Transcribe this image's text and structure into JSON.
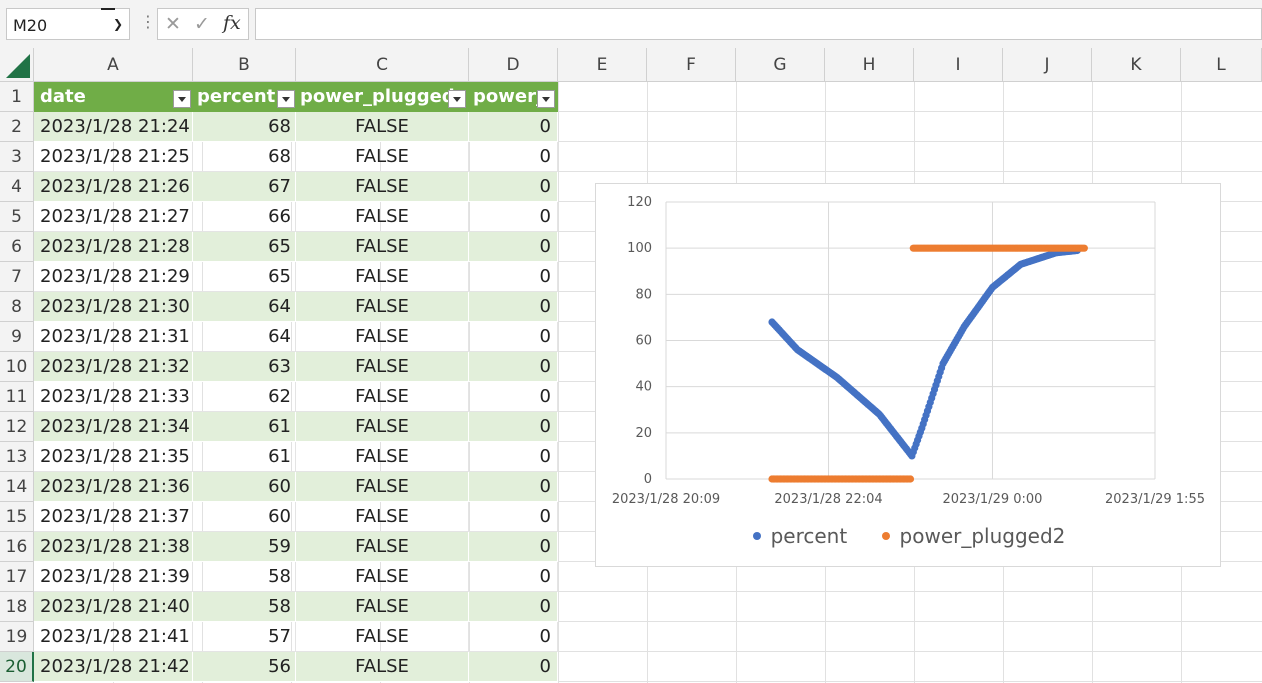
{
  "formula_bar": {
    "name_box": "M20",
    "formula": ""
  },
  "columns": [
    "A",
    "B",
    "C",
    "D",
    "E",
    "F",
    "G",
    "H",
    "I",
    "J",
    "K",
    "L"
  ],
  "active_row": 20,
  "table": {
    "headers": [
      "date",
      "percent",
      "power_plugged",
      "power_"
    ],
    "rows": [
      [
        "2023/1/28 21:24",
        "68",
        "FALSE",
        "0"
      ],
      [
        "2023/1/28 21:25",
        "68",
        "FALSE",
        "0"
      ],
      [
        "2023/1/28 21:26",
        "67",
        "FALSE",
        "0"
      ],
      [
        "2023/1/28 21:27",
        "66",
        "FALSE",
        "0"
      ],
      [
        "2023/1/28 21:28",
        "65",
        "FALSE",
        "0"
      ],
      [
        "2023/1/28 21:29",
        "65",
        "FALSE",
        "0"
      ],
      [
        "2023/1/28 21:30",
        "64",
        "FALSE",
        "0"
      ],
      [
        "2023/1/28 21:31",
        "64",
        "FALSE",
        "0"
      ],
      [
        "2023/1/28 21:32",
        "63",
        "FALSE",
        "0"
      ],
      [
        "2023/1/28 21:33",
        "62",
        "FALSE",
        "0"
      ],
      [
        "2023/1/28 21:34",
        "61",
        "FALSE",
        "0"
      ],
      [
        "2023/1/28 21:35",
        "61",
        "FALSE",
        "0"
      ],
      [
        "2023/1/28 21:36",
        "60",
        "FALSE",
        "0"
      ],
      [
        "2023/1/28 21:37",
        "60",
        "FALSE",
        "0"
      ],
      [
        "2023/1/28 21:38",
        "59",
        "FALSE",
        "0"
      ],
      [
        "2023/1/28 21:39",
        "58",
        "FALSE",
        "0"
      ],
      [
        "2023/1/28 21:40",
        "58",
        "FALSE",
        "0"
      ],
      [
        "2023/1/28 21:41",
        "57",
        "FALSE",
        "0"
      ],
      [
        "2023/1/28 21:42",
        "56",
        "FALSE",
        "0"
      ]
    ]
  },
  "colors": {
    "table_header": "#70ad47",
    "table_band": "#e2efda",
    "series_percent": "#4472c4",
    "series_power": "#ed7d31"
  },
  "chart_data": {
    "type": "scatter",
    "title": "",
    "xlabel": "",
    "ylabel": "",
    "ylim": [
      0,
      120
    ],
    "yticks": [
      "0",
      "20",
      "40",
      "60",
      "80",
      "100",
      "120"
    ],
    "xticks": [
      "2023/1/28 20:09",
      "2023/1/28 22:04",
      "2023/1/29 0:00",
      "2023/1/29 1:55"
    ],
    "grid": "vertical and horizontal major gridlines",
    "legend": "bottom",
    "series": [
      {
        "name": "percent",
        "x": [
          "2023/1/28 21:24",
          "2023/1/28 21:42",
          "2023/1/28 22:10",
          "2023/1/28 22:40",
          "2023/1/28 23:03",
          "2023/1/28 23:10",
          "2023/1/28 23:25",
          "2023/1/28 23:40",
          "2023/1/29 0:00",
          "2023/1/29 0:20",
          "2023/1/29 0:45",
          "2023/1/29 1:00"
        ],
        "values": [
          68,
          56,
          44,
          28,
          10,
          22,
          50,
          66,
          83,
          93,
          98,
          99
        ]
      },
      {
        "name": "power_plugged2",
        "x": [
          "2023/1/28 21:24",
          "2023/1/28 23:03",
          "2023/1/28 23:04",
          "2023/1/29 1:05"
        ],
        "values": [
          0,
          0,
          100,
          100
        ]
      }
    ]
  }
}
